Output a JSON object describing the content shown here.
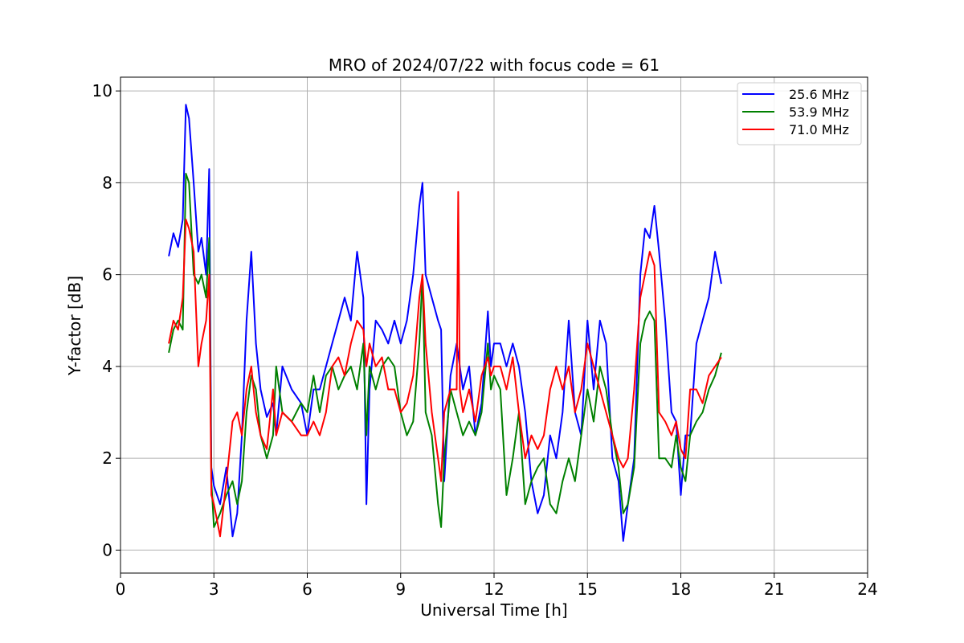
{
  "chart_data": {
    "type": "line",
    "title": "MRO of 2024/07/22 with focus code = 61",
    "xlabel": "Universal Time [h]",
    "ylabel": "Y-factor [dB]",
    "xlim": [
      0,
      24
    ],
    "ylim": [
      -0.5,
      10.3
    ],
    "xticks": [
      0,
      3,
      6,
      9,
      12,
      15,
      18,
      21,
      24
    ],
    "yticks": [
      0,
      2,
      4,
      6,
      8,
      10
    ],
    "grid": true,
    "legend_position": "top-right",
    "series": [
      {
        "name": "25.6 MHz",
        "color": "#0000ff",
        "x": [
          1.55,
          1.7,
          1.85,
          2.0,
          2.1,
          2.2,
          2.35,
          2.5,
          2.6,
          2.75,
          2.85,
          2.92,
          3.0,
          3.2,
          3.4,
          3.6,
          3.75,
          3.9,
          4.05,
          4.2,
          4.35,
          4.5,
          4.7,
          4.9,
          5.0,
          5.2,
          5.5,
          5.8,
          6.0,
          6.2,
          6.4,
          6.6,
          6.8,
          7.0,
          7.2,
          7.4,
          7.6,
          7.8,
          7.9,
          8.0,
          8.2,
          8.4,
          8.6,
          8.8,
          9.0,
          9.2,
          9.4,
          9.6,
          9.7,
          9.8,
          10.0,
          10.2,
          10.3,
          10.4,
          10.6,
          10.8,
          11.0,
          11.2,
          11.4,
          11.6,
          11.8,
          11.9,
          12.0,
          12.2,
          12.4,
          12.6,
          12.8,
          13.0,
          13.2,
          13.4,
          13.6,
          13.8,
          14.0,
          14.2,
          14.4,
          14.6,
          14.8,
          15.0,
          15.2,
          15.4,
          15.6,
          15.8,
          16.0,
          16.15,
          16.3,
          16.5,
          16.7,
          16.85,
          17.0,
          17.15,
          17.3,
          17.5,
          17.7,
          17.85,
          18.0,
          18.15,
          18.3,
          18.5,
          18.7,
          18.9,
          19.1,
          19.3
        ],
        "y": [
          6.4,
          6.9,
          6.6,
          7.2,
          9.7,
          9.4,
          8.0,
          6.5,
          6.8,
          6.0,
          8.3,
          1.8,
          1.4,
          1.0,
          1.8,
          0.3,
          0.8,
          2.5,
          5.0,
          6.5,
          4.5,
          3.5,
          2.9,
          3.2,
          2.5,
          4.0,
          3.5,
          3.2,
          2.5,
          3.5,
          3.5,
          4.0,
          4.5,
          5.0,
          5.5,
          5.0,
          6.5,
          5.5,
          1.0,
          3.5,
          5.0,
          4.8,
          4.5,
          5.0,
          4.5,
          5.0,
          6.0,
          7.5,
          8.0,
          6.0,
          5.5,
          5.0,
          4.8,
          1.5,
          3.8,
          4.5,
          3.5,
          4.0,
          2.5,
          3.2,
          5.2,
          4.0,
          4.5,
          4.5,
          4.0,
          4.5,
          4.0,
          3.0,
          1.5,
          0.8,
          1.2,
          2.5,
          2.0,
          3.0,
          5.0,
          3.0,
          2.5,
          5.0,
          3.5,
          5.0,
          4.5,
          2.0,
          1.5,
          0.2,
          1.0,
          2.0,
          6.0,
          7.0,
          6.8,
          7.5,
          6.5,
          5.0,
          3.0,
          2.8,
          1.2,
          2.5,
          2.5,
          4.5,
          5.0,
          5.5,
          6.5,
          5.8
        ]
      },
      {
        "name": "53.9 MHz",
        "color": "#008000",
        "x": [
          1.55,
          1.7,
          1.85,
          2.0,
          2.1,
          2.2,
          2.35,
          2.5,
          2.6,
          2.75,
          2.85,
          2.92,
          3.0,
          3.2,
          3.4,
          3.6,
          3.75,
          3.9,
          4.05,
          4.2,
          4.35,
          4.5,
          4.7,
          4.9,
          5.0,
          5.2,
          5.5,
          5.8,
          6.0,
          6.2,
          6.4,
          6.6,
          6.8,
          7.0,
          7.2,
          7.4,
          7.6,
          7.8,
          7.9,
          8.0,
          8.2,
          8.4,
          8.6,
          8.8,
          9.0,
          9.2,
          9.4,
          9.6,
          9.7,
          9.8,
          10.0,
          10.2,
          10.3,
          10.4,
          10.6,
          10.8,
          11.0,
          11.2,
          11.4,
          11.6,
          11.8,
          11.9,
          12.0,
          12.2,
          12.4,
          12.6,
          12.8,
          13.0,
          13.2,
          13.4,
          13.6,
          13.8,
          14.0,
          14.2,
          14.4,
          14.6,
          14.8,
          15.0,
          15.2,
          15.4,
          15.6,
          15.8,
          16.0,
          16.15,
          16.3,
          16.5,
          16.7,
          16.85,
          17.0,
          17.15,
          17.3,
          17.5,
          17.7,
          17.85,
          18.0,
          18.15,
          18.3,
          18.5,
          18.7,
          18.9,
          19.1,
          19.3
        ],
        "y": [
          4.3,
          4.8,
          5.0,
          4.8,
          8.2,
          8.0,
          6.0,
          5.8,
          6.0,
          5.5,
          6.8,
          1.5,
          0.5,
          0.8,
          1.2,
          1.5,
          1.0,
          1.5,
          3.0,
          3.8,
          3.5,
          2.5,
          2.0,
          2.5,
          4.0,
          3.0,
          2.8,
          3.2,
          3.0,
          3.8,
          3.0,
          3.8,
          4.0,
          3.5,
          3.8,
          4.0,
          3.5,
          4.5,
          2.5,
          4.0,
          3.5,
          4.0,
          4.2,
          4.0,
          3.0,
          2.5,
          2.8,
          4.5,
          6.0,
          3.0,
          2.5,
          1.0,
          0.5,
          2.0,
          3.5,
          3.0,
          2.5,
          2.8,
          2.5,
          3.0,
          4.5,
          3.5,
          3.8,
          3.5,
          1.2,
          2.0,
          3.0,
          1.0,
          1.5,
          1.8,
          2.0,
          1.0,
          0.8,
          1.5,
          2.0,
          1.5,
          2.5,
          3.5,
          2.8,
          4.0,
          3.5,
          2.5,
          1.8,
          0.8,
          1.0,
          1.8,
          4.5,
          5.0,
          5.2,
          5.0,
          2.0,
          2.0,
          1.8,
          2.5,
          1.8,
          1.5,
          2.5,
          2.8,
          3.0,
          3.5,
          3.8,
          4.3
        ]
      },
      {
        "name": "71.0 MHz",
        "color": "#ff0000",
        "x": [
          1.55,
          1.7,
          1.85,
          2.0,
          2.1,
          2.2,
          2.35,
          2.5,
          2.6,
          2.75,
          2.85,
          2.92,
          3.0,
          3.2,
          3.4,
          3.6,
          3.75,
          3.9,
          4.05,
          4.2,
          4.35,
          4.5,
          4.7,
          4.9,
          5.0,
          5.2,
          5.5,
          5.8,
          6.0,
          6.2,
          6.4,
          6.6,
          6.8,
          7.0,
          7.2,
          7.4,
          7.6,
          7.8,
          7.9,
          8.0,
          8.2,
          8.4,
          8.6,
          8.8,
          9.0,
          9.2,
          9.4,
          9.6,
          9.7,
          9.8,
          10.0,
          10.2,
          10.3,
          10.4,
          10.6,
          10.8,
          10.85,
          10.9,
          11.0,
          11.2,
          11.4,
          11.6,
          11.8,
          11.9,
          12.0,
          12.2,
          12.4,
          12.6,
          12.8,
          13.0,
          13.2,
          13.4,
          13.6,
          13.8,
          14.0,
          14.2,
          14.4,
          14.6,
          14.8,
          15.0,
          15.2,
          15.4,
          15.6,
          15.8,
          16.0,
          16.15,
          16.3,
          16.5,
          16.7,
          16.85,
          17.0,
          17.15,
          17.3,
          17.5,
          17.7,
          17.85,
          18.0,
          18.15,
          18.3,
          18.5,
          18.7,
          18.9,
          19.1,
          19.3
        ],
        "y": [
          4.5,
          5.0,
          4.8,
          5.5,
          7.2,
          7.0,
          6.5,
          4.0,
          4.5,
          5.0,
          6.0,
          1.2,
          1.0,
          0.3,
          1.5,
          2.8,
          3.0,
          2.5,
          3.5,
          4.0,
          3.0,
          2.5,
          2.2,
          3.5,
          2.5,
          3.0,
          2.8,
          2.5,
          2.5,
          2.8,
          2.5,
          3.0,
          4.0,
          4.2,
          3.8,
          4.5,
          5.0,
          4.8,
          4.0,
          4.5,
          4.0,
          4.2,
          3.5,
          3.5,
          3.0,
          3.2,
          3.8,
          5.5,
          6.0,
          4.5,
          3.0,
          2.0,
          1.5,
          3.0,
          3.5,
          3.5,
          7.8,
          3.5,
          3.0,
          3.5,
          2.8,
          3.8,
          4.2,
          3.8,
          4.0,
          4.0,
          3.5,
          4.2,
          3.0,
          2.0,
          2.5,
          2.2,
          2.5,
          3.5,
          4.0,
          3.5,
          4.0,
          3.0,
          3.5,
          4.5,
          4.0,
          3.5,
          3.0,
          2.5,
          2.0,
          1.8,
          2.0,
          3.5,
          5.5,
          6.0,
          6.5,
          6.2,
          3.0,
          2.8,
          2.5,
          2.8,
          2.2,
          2.0,
          3.5,
          3.5,
          3.2,
          3.8,
          4.0,
          4.2
        ]
      }
    ]
  }
}
